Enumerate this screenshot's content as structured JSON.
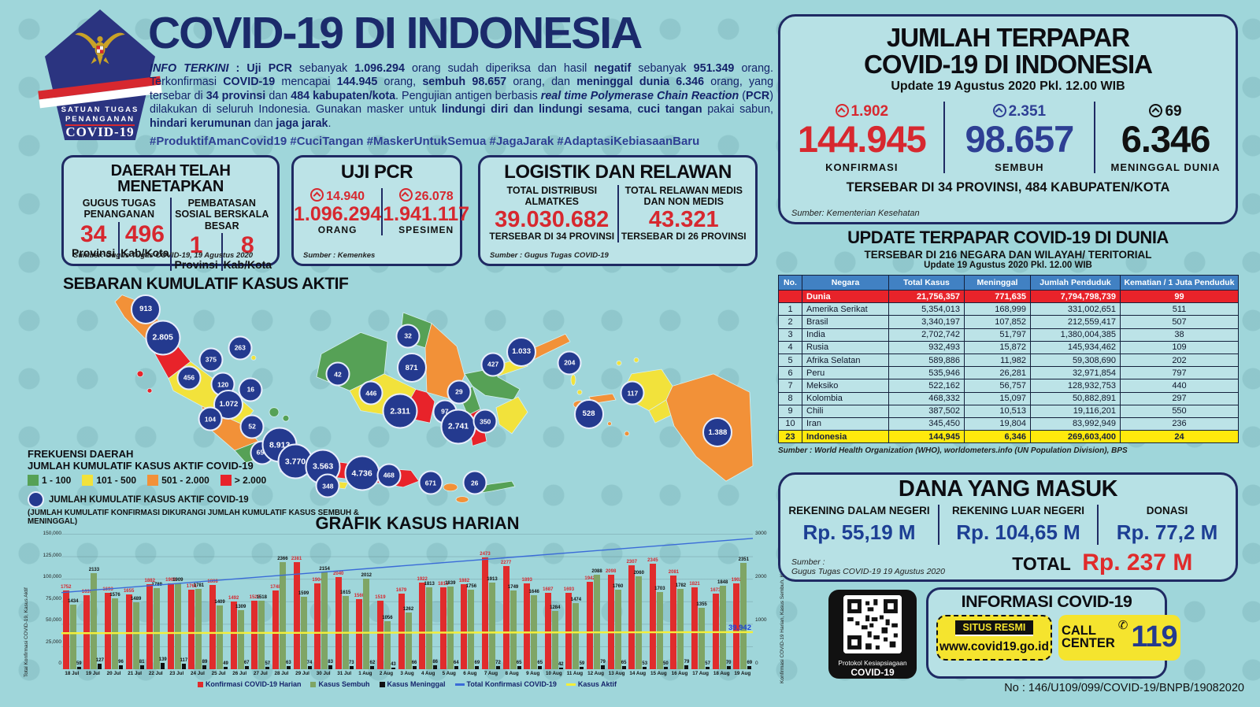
{
  "colors": {
    "background": "#9fd6da",
    "navy": "#1b2a6b",
    "red": "#d7282f",
    "blue_sembuh": "#2e3f94",
    "table_header_blue": "#4181c3",
    "map_green": "#56a156",
    "map_yellow": "#f2e23b",
    "map_orange": "#f29138",
    "map_red": "#e8232a",
    "chart_green": "#7fa565",
    "highlight_yellow": "#ffe90c"
  },
  "logo": {
    "line1": "SATUAN TUGAS",
    "line2": "PENANGANAN",
    "line3": "COVID-19"
  },
  "header": {
    "title": "COVID-19 DI INDONESIA",
    "info_segments": [
      {
        "t": "INFO TERKINI",
        "s": "bi"
      },
      {
        "t": " : ",
        "s": "b"
      },
      {
        "t": "Uji PCR",
        "s": "b"
      },
      {
        "t": " sebanyak ",
        "s": ""
      },
      {
        "t": "1.096.294",
        "s": "b"
      },
      {
        "t": " orang sudah diperiksa dan hasil ",
        "s": ""
      },
      {
        "t": "negatif",
        "s": "b"
      },
      {
        "t": " sebanyak ",
        "s": ""
      },
      {
        "t": "951.349",
        "s": "b"
      },
      {
        "t": " orang. Terkonfirmasi ",
        "s": ""
      },
      {
        "t": "COVID-19",
        "s": "b"
      },
      {
        "t": " mencapai ",
        "s": ""
      },
      {
        "t": "144.945",
        "s": "b"
      },
      {
        "t": " orang, ",
        "s": ""
      },
      {
        "t": "sembuh 98.657",
        "s": "b"
      },
      {
        "t": " orang, dan ",
        "s": ""
      },
      {
        "t": "meninggal dunia 6.346",
        "s": "b"
      },
      {
        "t": " orang, yang tersebar di ",
        "s": ""
      },
      {
        "t": "34 provinsi",
        "s": "b"
      },
      {
        "t": " dan ",
        "s": ""
      },
      {
        "t": "484 kabupaten/kota",
        "s": "b"
      },
      {
        "t": ". Pengujian antigen berbasis ",
        "s": ""
      },
      {
        "t": "real time Polymerase Chain Reaction",
        "s": "bi"
      },
      {
        "t": " (",
        "s": ""
      },
      {
        "t": "PCR",
        "s": "b"
      },
      {
        "t": ") dilakukan di seluruh Indonesia. Gunakan masker untuk ",
        "s": ""
      },
      {
        "t": "lindungi diri dan lindungi sesama",
        "s": "b"
      },
      {
        "t": ", ",
        "s": ""
      },
      {
        "t": "cuci tangan",
        "s": "b"
      },
      {
        "t": " pakai sabun, ",
        "s": ""
      },
      {
        "t": "hindari kerumunan",
        "s": "b"
      },
      {
        "t": " dan ",
        "s": ""
      },
      {
        "t": "jaga jarak",
        "s": "b"
      },
      {
        "t": ".",
        "s": ""
      }
    ],
    "hashtags": "#ProduktifAmanCovid19 #CuciTangan #MaskerUntukSemua #JagaJarak #AdaptasiKebiasaanBaru"
  },
  "daerah": {
    "title": "DAERAH TELAH MENETAPKAN",
    "gugus": {
      "header": "GUGUS TUGAS PENANGANAN",
      "v1": "34",
      "l1": "Provinsi",
      "v2": "496",
      "l2": "Kab/Kota"
    },
    "psbb": {
      "header": "PEMBATASAN SOSIAL BERSKALA BESAR",
      "v1": "1",
      "l1": "Provinsi",
      "v2": "8",
      "l2": "Kab/Kota"
    },
    "source": "Sumber: Gugus Tugas COVID-19, 19 Agustus 2020"
  },
  "pcr": {
    "title": "UJI PCR",
    "left": {
      "delta": "14.940",
      "value": "1.096.294",
      "label": "ORANG"
    },
    "right": {
      "delta": "26.078",
      "value": "1.941.117",
      "label": "SPESIMEN"
    },
    "source": "Sumber : Kemenkes"
  },
  "logistik": {
    "title": "LOGISTIK DAN RELAWAN",
    "almatkes": {
      "header": "TOTAL DISTRIBUSI ALMATKES",
      "value": "39.030.682",
      "note": "TERSEBAR DI 34 PROVINSI"
    },
    "relawan": {
      "header": "TOTAL RELAWAN MEDIS DAN NON MEDIS",
      "value": "43.321",
      "note": "TERSEBAR DI 26 PROVINSI"
    },
    "source": "Sumber : Gugus Tugas COVID-19"
  },
  "map": {
    "title": "SEBARAN KUMULATIF KASUS AKTIF",
    "legend": {
      "title1": "FREKUENSI DAERAH",
      "title2": "JUMLAH KUMULATIF KASUS AKTIF COVID-19",
      "bins": [
        {
          "label": "1 - 100",
          "color": "#56a156"
        },
        {
          "label": "101 - 500",
          "color": "#f2e23b"
        },
        {
          "label": "501 - 2.000",
          "color": "#f29138"
        },
        {
          "label": "> 2.000",
          "color": "#e8232a"
        }
      ],
      "marker_label": "JUMLAH  KUMULATIF KASUS AKTIF COVID-19",
      "marker_sub": "(JUMLAH KUMULATIF KONFIRMASI DIKURANGI JUMLAH KUMULATIF KASUS SEMBUH & MENINGGAL)"
    },
    "markers": [
      {
        "name": "Aceh",
        "value": "913",
        "x": 13.9,
        "y": 11.3,
        "size": "md"
      },
      {
        "name": "Sumatera Utara",
        "value": "2.805",
        "x": 16.3,
        "y": 23.5,
        "size": "lg"
      },
      {
        "name": "Kepulauan Riau",
        "value": "263",
        "x": 27.2,
        "y": 28.0,
        "size": "sm"
      },
      {
        "name": "Riau",
        "value": "375",
        "x": 23.1,
        "y": 33.2,
        "size": "sm"
      },
      {
        "name": "Sumatera Barat",
        "value": "456",
        "x": 20.0,
        "y": 41.0,
        "size": "sm"
      },
      {
        "name": "Jambi",
        "value": "120",
        "x": 24.8,
        "y": 43.9,
        "size": "sm"
      },
      {
        "name": "Bangka Belitung",
        "value": "16",
        "x": 28.7,
        "y": 46.1,
        "size": "sm"
      },
      {
        "name": "Sumatera Selatan",
        "value": "1.072",
        "x": 25.6,
        "y": 52.6,
        "size": "md"
      },
      {
        "name": "Bengkulu",
        "value": "104",
        "x": 23.0,
        "y": 59.0,
        "size": "sm"
      },
      {
        "name": "Lampung",
        "value": "52",
        "x": 28.9,
        "y": 62.3,
        "size": "sm"
      },
      {
        "name": "Banten",
        "value": "655",
        "x": 30.3,
        "y": 73.5,
        "size": "sm"
      },
      {
        "name": "DKI Jakarta",
        "value": "8.913",
        "x": 32.8,
        "y": 70.3,
        "size": "lg"
      },
      {
        "name": "Jawa Barat",
        "value": "3.770",
        "x": 35.0,
        "y": 77.4,
        "size": "lg"
      },
      {
        "name": "Jawa Tengah",
        "value": "3.563",
        "x": 38.9,
        "y": 79.7,
        "size": "lg"
      },
      {
        "name": "DI Yogyakarta",
        "value": "348",
        "x": 39.6,
        "y": 88.1,
        "size": "sm"
      },
      {
        "name": "Jawa Timur",
        "value": "4.736",
        "x": 44.4,
        "y": 82.6,
        "size": "lg"
      },
      {
        "name": "Bali",
        "value": "468",
        "x": 48.2,
        "y": 83.5,
        "size": "sm"
      },
      {
        "name": "Nusa Tenggara Barat",
        "value": "671",
        "x": 54.1,
        "y": 86.8,
        "size": "sm"
      },
      {
        "name": "Nusa Tenggara Timur",
        "value": "26",
        "x": 60.3,
        "y": 86.8,
        "size": "sm"
      },
      {
        "name": "Kalimantan Barat",
        "value": "42",
        "x": 41.0,
        "y": 39.4,
        "size": "sm"
      },
      {
        "name": "Kalimantan Tengah",
        "value": "446",
        "x": 45.7,
        "y": 47.7,
        "size": "sm"
      },
      {
        "name": "Kalimantan Selatan",
        "value": "2.311",
        "x": 49.8,
        "y": 55.5,
        "size": "lg"
      },
      {
        "name": "Kalimantan Timur",
        "value": "871",
        "x": 51.4,
        "y": 36.8,
        "size": "md"
      },
      {
        "name": "Kalimantan Utara",
        "value": "32",
        "x": 50.9,
        "y": 22.9,
        "size": "sm"
      },
      {
        "name": "Sulawesi Utara",
        "value": "1.033",
        "x": 66.9,
        "y": 29.7,
        "size": "md"
      },
      {
        "name": "Gorontalo",
        "value": "427",
        "x": 62.9,
        "y": 35.2,
        "size": "sm"
      },
      {
        "name": "Maluku Utara",
        "value": "204",
        "x": 73.7,
        "y": 34.5,
        "size": "sm"
      },
      {
        "name": "Sulawesi Tengah",
        "value": "29",
        "x": 58.1,
        "y": 47.1,
        "size": "sm"
      },
      {
        "name": "Sulawesi Barat",
        "value": "97",
        "x": 56.1,
        "y": 55.8,
        "size": "sm"
      },
      {
        "name": "Sulawesi Selatan",
        "value": "2.741",
        "x": 58.0,
        "y": 62.3,
        "size": "lg"
      },
      {
        "name": "Sulawesi Tenggara",
        "value": "350",
        "x": 61.8,
        "y": 60.0,
        "size": "sm"
      },
      {
        "name": "Maluku",
        "value": "528",
        "x": 76.4,
        "y": 56.8,
        "size": "md"
      },
      {
        "name": "Papua Barat",
        "value": "117",
        "x": 82.6,
        "y": 47.7,
        "size": "sm"
      },
      {
        "name": "Papua",
        "value": "1.388",
        "x": 94.6,
        "y": 64.8,
        "size": "md"
      }
    ]
  },
  "chart_data": {
    "type": "bar",
    "title": "GRAFIK KASUS HARIAN",
    "categories": [
      "18 Jul",
      "19 Jul",
      "20 Jul",
      "21 Jul",
      "22 Jul",
      "23 Jul",
      "24 Jul",
      "25 Jul",
      "26 Jul",
      "27 Jul",
      "28 Jul",
      "29 Jul",
      "30 Jul",
      "31 Jul",
      "1 Aug",
      "2 Aug",
      "3 Aug",
      "4 Aug",
      "5 Aug",
      "6 Aug",
      "7 Aug",
      "8 Aug",
      "9 Aug",
      "10 Aug",
      "11 Aug",
      "12 Aug",
      "13 Aug",
      "14 Aug",
      "15 Aug",
      "16 Aug",
      "17 Aug",
      "18 Aug",
      "19 Aug"
    ],
    "series": [
      {
        "name": "Konfirmasi COVID-19 Harian",
        "color": "#e02c2c",
        "values": [
          1752,
          1639,
          1693,
          1655,
          1882,
          1906,
          1761,
          1868,
          1492,
          1525,
          1748,
          2381,
          1904,
          2040,
          1560,
          1519,
          1679,
          1922,
          1815,
          1882,
          2473,
          2277,
          1893,
          1687,
          1693,
          1942,
          2098,
          2307,
          2345,
          2081,
          1821,
          1673,
          1902
        ]
      },
      {
        "name": "Kasus Sembuh",
        "color": "#7fa565",
        "values": [
          1434,
          2133,
          1576,
          1489,
          1789,
          1909,
          1781,
          1409,
          1309,
          1518,
          2366,
          1599,
          2154,
          1615,
          2012,
          1056,
          1262,
          1813,
          1839,
          1756,
          1913,
          1749,
          1646,
          1284,
          1474,
          2088,
          1760,
          2060,
          1703,
          1782,
          1355,
          1848,
          2351
        ]
      },
      {
        "name": "Kasus Meninggal",
        "color": "#111111",
        "values": [
          59,
          127,
          96,
          81,
          139,
          117,
          89,
          49,
          67,
          57,
          63,
          74,
          83,
          73,
          62,
          43,
          66,
          86,
          64,
          69,
          72,
          65,
          65,
          42,
          59,
          79,
          65,
          53,
          50,
          79,
          57,
          70,
          69
        ]
      }
    ],
    "legend": [
      {
        "label": "Konfirmasi COVID-19 Harian",
        "color": "#e02c2c",
        "type": "bar"
      },
      {
        "label": "Kasus Sembuh",
        "color": "#7fa565",
        "type": "bar"
      },
      {
        "label": "Kasus Meninggal",
        "color": "#111111",
        "type": "bar"
      },
      {
        "label": "Total Konfirmasi COVID-19",
        "color": "#3a6bd8",
        "type": "line"
      },
      {
        "label": "Kasus Aktif",
        "color": "#f4ef3a",
        "type": "line"
      }
    ],
    "left_ticks": [
      "150,000",
      "125,000",
      "100,000",
      "75,000",
      "50,000",
      "25,000",
      "0"
    ],
    "right_ticks": [
      "3000",
      "2000",
      "1000",
      "0"
    ],
    "ylim_left": [
      0,
      150000
    ],
    "ylim_right": [
      0,
      3000
    ],
    "left_axis_label": "Total Konfirmasi COVID-19, Kasus Aktif",
    "right_axis_label": "Konfirmasi COVID-19 Harian, Kasus Sembuh, Kasus Meninggal",
    "active_cases_label": "39,942",
    "grid": true,
    "legend_position": "bottom"
  },
  "jumlah": {
    "title1": "JUMLAH TERPAPAR",
    "title2": "COVID-19 DI INDONESIA",
    "update": "Update 19 Agustus 2020 Pkl. 12.00 WIB",
    "konfirmasi": {
      "delta": "1.902",
      "value": "144.945",
      "label": "KONFIRMASI"
    },
    "sembuh": {
      "delta": "2.351",
      "value": "98.657",
      "label": "SEMBUH"
    },
    "meninggal": {
      "delta": "69",
      "value": "6.346",
      "label": "MENINGGAL DUNIA"
    },
    "footer": "TERSEBAR DI 34 PROVINSI, 484 KABUPATEN/KOTA",
    "source": "Sumber: Kementerian Kesehatan"
  },
  "world": {
    "title": "UPDATE TERPAPAR COVID-19 DI DUNIA",
    "sub1": "TERSEBAR DI 216 NEGARA DAN WILAYAH/ TERITORIAL",
    "sub2": "Update 19 Agustus 2020 Pkl. 12.00 WIB",
    "headers": [
      "No.",
      "Negara",
      "Total Kasus",
      "Meninggal",
      "Jumlah Penduduk",
      "Kematian / 1 Juta Penduduk"
    ],
    "rows": [
      {
        "c": [
          "",
          "Dunia",
          "21,756,357",
          "771,635",
          "7,794,798,739",
          "99"
        ],
        "hl": "dunia"
      },
      {
        "c": [
          "1",
          "Amerika Serikat",
          "5,354,013",
          "168,999",
          "331,002,651",
          "511"
        ],
        "hl": ""
      },
      {
        "c": [
          "2",
          "Brasil",
          "3,340,197",
          "107,852",
          "212,559,417",
          "507"
        ],
        "hl": ""
      },
      {
        "c": [
          "3",
          "India",
          "2,702,742",
          "51,797",
          "1,380,004,385",
          "38"
        ],
        "hl": ""
      },
      {
        "c": [
          "4",
          "Rusia",
          "932,493",
          "15,872",
          "145,934,462",
          "109"
        ],
        "hl": ""
      },
      {
        "c": [
          "5",
          "Afrika Selatan",
          "589,886",
          "11,982",
          "59,308,690",
          "202"
        ],
        "hl": ""
      },
      {
        "c": [
          "6",
          "Peru",
          "535,946",
          "26,281",
          "32,971,854",
          "797"
        ],
        "hl": ""
      },
      {
        "c": [
          "7",
          "Meksiko",
          "522,162",
          "56,757",
          "128,932,753",
          "440"
        ],
        "hl": ""
      },
      {
        "c": [
          "8",
          "Kolombia",
          "468,332",
          "15,097",
          "50,882,891",
          "297"
        ],
        "hl": ""
      },
      {
        "c": [
          "9",
          "Chili",
          "387,502",
          "10,513",
          "19,116,201",
          "550"
        ],
        "hl": ""
      },
      {
        "c": [
          "10",
          "Iran",
          "345,450",
          "19,804",
          "83,992,949",
          "236"
        ],
        "hl": ""
      },
      {
        "c": [
          "23",
          "Indonesia",
          "144,945",
          "6,346",
          "269,603,400",
          "24"
        ],
        "hl": "indo"
      }
    ],
    "source": "Sumber : World Health Organization (WHO), worldometers.info (UN Population Division), BPS"
  },
  "dana": {
    "title": "DANA YANG MASUK",
    "dalam": {
      "header": "REKENING DALAM NEGERI",
      "value": "Rp. 55,19 M"
    },
    "luar": {
      "header": "REKENING LUAR NEGERI",
      "value": "Rp. 104,65 M"
    },
    "donasi": {
      "header": "DONASI",
      "value": "Rp. 77,2 M"
    },
    "source1": "Sumber :",
    "source2": "Gugus Tugas COVID-19 19 Agustus 2020",
    "total_label": "TOTAL",
    "total_value": "Rp. 237 M"
  },
  "qr": {
    "line1": "Protokol Kesiapsiagaan",
    "line2": "COVID-19"
  },
  "info_box": {
    "title": "INFORMASI COVID-19",
    "situs_label": "SITUS RESMI",
    "situs_url": "www.covid19.go.id",
    "call_line1": "CALL",
    "call_line2": "CENTER",
    "call_number": "119"
  },
  "footer": {
    "doc_no": "No : 146/U109/099/COVID-19/BNPB/19082020"
  }
}
